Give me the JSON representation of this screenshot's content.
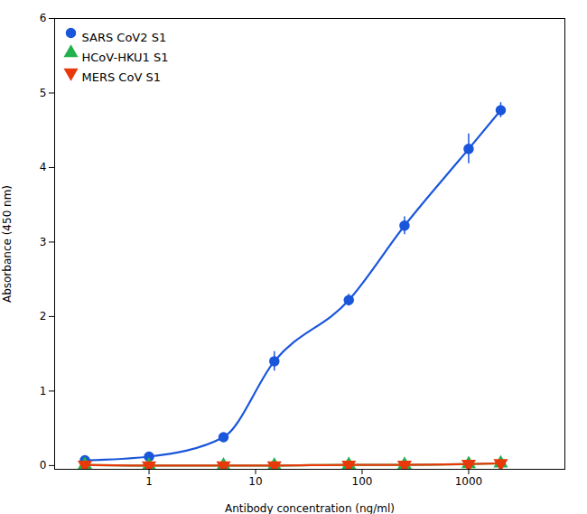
{
  "chart_data": {
    "type": "line",
    "xlabel": "Antibody concentration (ng/ml)",
    "ylabel": "Absorbance (450 nm)",
    "log": "x",
    "xlim": [
      0.13,
      8000
    ],
    "ylim": [
      -0.05,
      6
    ],
    "xticks": [
      1,
      10,
      100,
      1000
    ],
    "yticks": [
      0,
      1,
      2,
      3,
      4,
      5,
      6
    ],
    "legend": "upper left",
    "x": [
      0.25,
      1.0,
      5.0,
      15.0,
      75.0,
      250.0,
      1000.0,
      2000.0
    ],
    "series": [
      {
        "name": "SARS CoV2 S1",
        "color": "#1a56db",
        "marker": "circle",
        "values": [
          0.07,
          0.12,
          0.38,
          1.4,
          2.22,
          3.22,
          4.25,
          4.77
        ],
        "yerr": [
          0.02,
          0.03,
          0.04,
          0.13,
          0.08,
          0.12,
          0.2,
          0.1
        ]
      },
      {
        "name": "HCoV-HKU1 S1",
        "color": "#22b14c",
        "marker": "triangle-up",
        "values": [
          0.01,
          0.0,
          0.0,
          0.0,
          0.01,
          0.01,
          0.02,
          0.03
        ],
        "yerr": [
          0.005,
          0.005,
          0.005,
          0.005,
          0.005,
          0.005,
          0.005,
          0.005
        ]
      },
      {
        "name": "MERS CoV S1",
        "color": "#e8390a",
        "marker": "triangle-down",
        "values": [
          0.01,
          0.0,
          0.0,
          0.0,
          0.01,
          0.01,
          0.02,
          0.03
        ],
        "yerr": [
          0.005,
          0.005,
          0.005,
          0.005,
          0.005,
          0.005,
          0.005,
          0.005
        ]
      }
    ]
  }
}
